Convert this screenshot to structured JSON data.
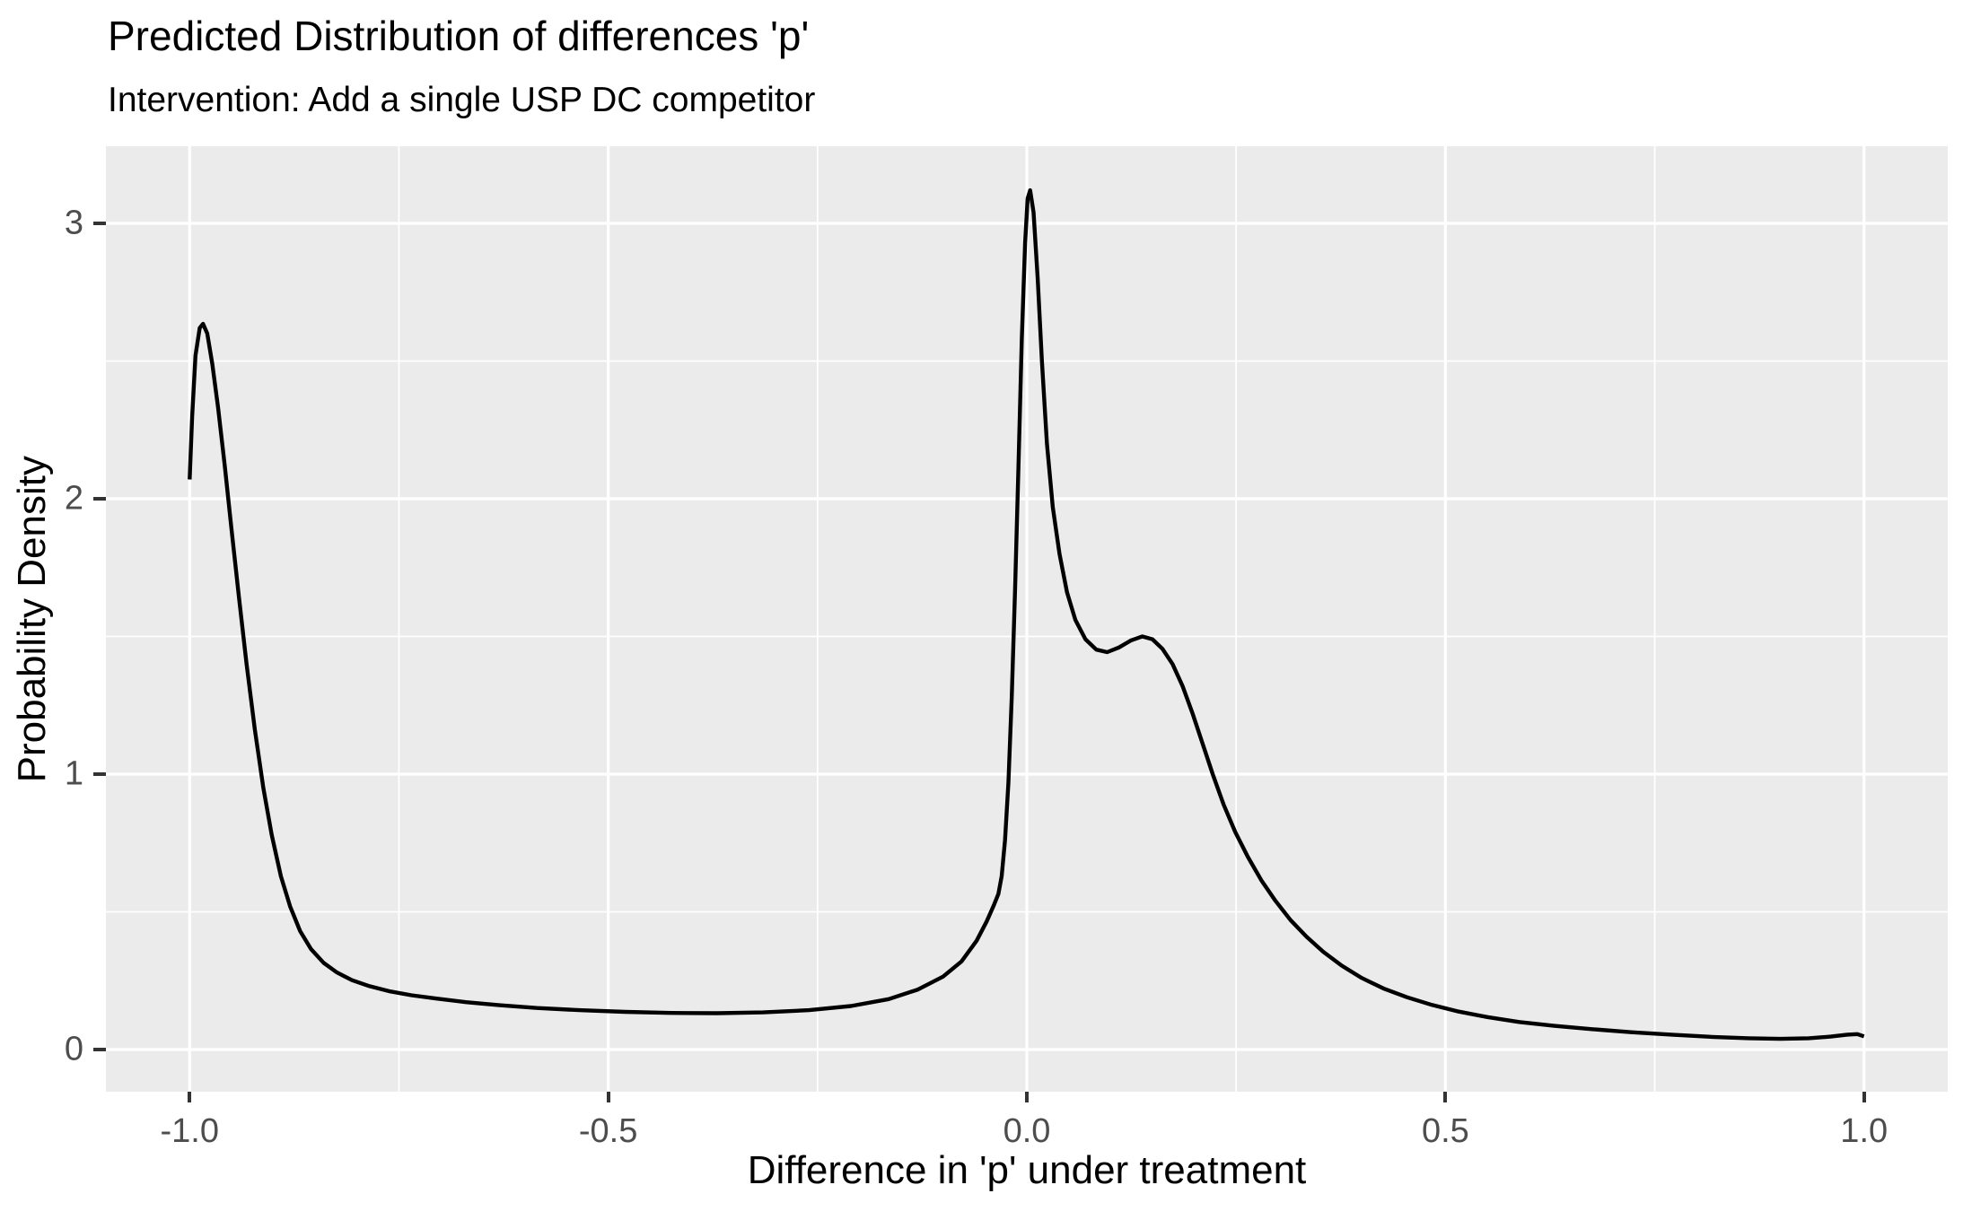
{
  "chart_data": {
    "type": "line",
    "title": "Predicted Distribution of differences 'p'",
    "subtitle": "Intervention: Add a single USP DC competitor",
    "xlabel": "Difference in 'p' under treatment",
    "ylabel": "Probability Density",
    "xlim": [
      -1.1,
      1.1
    ],
    "ylim": [
      -0.153,
      3.28
    ],
    "x_ticks": [
      -1.0,
      -0.5,
      0.0,
      0.5,
      1.0
    ],
    "x_tick_labels": [
      "-1.0",
      "-0.5",
      "0.0",
      "0.5",
      "1.0"
    ],
    "x_minor_breaks": [
      -0.75,
      -0.25,
      0.25,
      0.75
    ],
    "y_ticks": [
      0,
      1,
      2,
      3
    ],
    "y_tick_labels": [
      "0",
      "1",
      "2",
      "3"
    ],
    "y_minor_breaks": [
      0.5,
      1.5,
      2.5
    ],
    "grid": true,
    "legend_position": "none",
    "style": {
      "panel_bg": "#EBEBEB",
      "grid_color": "#FFFFFF",
      "grid_major_width": 3.2,
      "grid_minor_width": 1.8,
      "axis_text_color": "#4D4D4D",
      "tick_mark_color": "#333333",
      "title_color": "#000000",
      "line_color": "#000000",
      "line_width": 4.4
    },
    "series": [
      {
        "name": "density",
        "color": "#000000",
        "points": [
          [
            -1.0,
            2.07
          ],
          [
            -0.997,
            2.3
          ],
          [
            -0.993,
            2.52
          ],
          [
            -0.988,
            2.62
          ],
          [
            -0.984,
            2.635
          ],
          [
            -0.979,
            2.6
          ],
          [
            -0.973,
            2.49
          ],
          [
            -0.966,
            2.33
          ],
          [
            -0.958,
            2.12
          ],
          [
            -0.95,
            1.89
          ],
          [
            -0.941,
            1.64
          ],
          [
            -0.932,
            1.4
          ],
          [
            -0.922,
            1.16
          ],
          [
            -0.912,
            0.95
          ],
          [
            -0.902,
            0.78
          ],
          [
            -0.891,
            0.63
          ],
          [
            -0.88,
            0.52
          ],
          [
            -0.868,
            0.43
          ],
          [
            -0.855,
            0.365
          ],
          [
            -0.84,
            0.315
          ],
          [
            -0.824,
            0.28
          ],
          [
            -0.806,
            0.252
          ],
          [
            -0.785,
            0.23
          ],
          [
            -0.762,
            0.212
          ],
          [
            -0.735,
            0.197
          ],
          [
            -0.705,
            0.185
          ],
          [
            -0.67,
            0.172
          ],
          [
            -0.63,
            0.161
          ],
          [
            -0.585,
            0.151
          ],
          [
            -0.535,
            0.143
          ],
          [
            -0.48,
            0.137
          ],
          [
            -0.425,
            0.133
          ],
          [
            -0.37,
            0.132
          ],
          [
            -0.315,
            0.135
          ],
          [
            -0.26,
            0.143
          ],
          [
            -0.21,
            0.158
          ],
          [
            -0.165,
            0.183
          ],
          [
            -0.13,
            0.218
          ],
          [
            -0.1,
            0.265
          ],
          [
            -0.078,
            0.32
          ],
          [
            -0.06,
            0.395
          ],
          [
            -0.048,
            0.465
          ],
          [
            -0.04,
            0.52
          ],
          [
            -0.034,
            0.565
          ],
          [
            -0.03,
            0.63
          ],
          [
            -0.026,
            0.76
          ],
          [
            -0.022,
            0.97
          ],
          [
            -0.018,
            1.28
          ],
          [
            -0.014,
            1.67
          ],
          [
            -0.01,
            2.12
          ],
          [
            -0.006,
            2.58
          ],
          [
            -0.002,
            2.93
          ],
          [
            0.001,
            3.09
          ],
          [
            0.004,
            3.12
          ],
          [
            0.008,
            3.04
          ],
          [
            0.013,
            2.8
          ],
          [
            0.018,
            2.5
          ],
          [
            0.024,
            2.2
          ],
          [
            0.031,
            1.97
          ],
          [
            0.039,
            1.8
          ],
          [
            0.048,
            1.66
          ],
          [
            0.058,
            1.56
          ],
          [
            0.07,
            1.49
          ],
          [
            0.083,
            1.452
          ],
          [
            0.096,
            1.443
          ],
          [
            0.11,
            1.46
          ],
          [
            0.124,
            1.485
          ],
          [
            0.138,
            1.5
          ],
          [
            0.15,
            1.49
          ],
          [
            0.162,
            1.455
          ],
          [
            0.174,
            1.4
          ],
          [
            0.186,
            1.32
          ],
          [
            0.198,
            1.22
          ],
          [
            0.21,
            1.11
          ],
          [
            0.222,
            1.0
          ],
          [
            0.235,
            0.89
          ],
          [
            0.249,
            0.79
          ],
          [
            0.264,
            0.7
          ],
          [
            0.28,
            0.615
          ],
          [
            0.297,
            0.54
          ],
          [
            0.315,
            0.47
          ],
          [
            0.334,
            0.41
          ],
          [
            0.354,
            0.355
          ],
          [
            0.376,
            0.305
          ],
          [
            0.4,
            0.26
          ],
          [
            0.426,
            0.222
          ],
          [
            0.454,
            0.19
          ],
          [
            0.484,
            0.162
          ],
          [
            0.516,
            0.138
          ],
          [
            0.55,
            0.118
          ],
          [
            0.588,
            0.1
          ],
          [
            0.63,
            0.086
          ],
          [
            0.675,
            0.074
          ],
          [
            0.722,
            0.063
          ],
          [
            0.77,
            0.054
          ],
          [
            0.818,
            0.046
          ],
          [
            0.862,
            0.041
          ],
          [
            0.9,
            0.039
          ],
          [
            0.934,
            0.041
          ],
          [
            0.96,
            0.047
          ],
          [
            0.98,
            0.054
          ],
          [
            0.992,
            0.056
          ],
          [
            1.0,
            0.048
          ]
        ]
      }
    ]
  }
}
